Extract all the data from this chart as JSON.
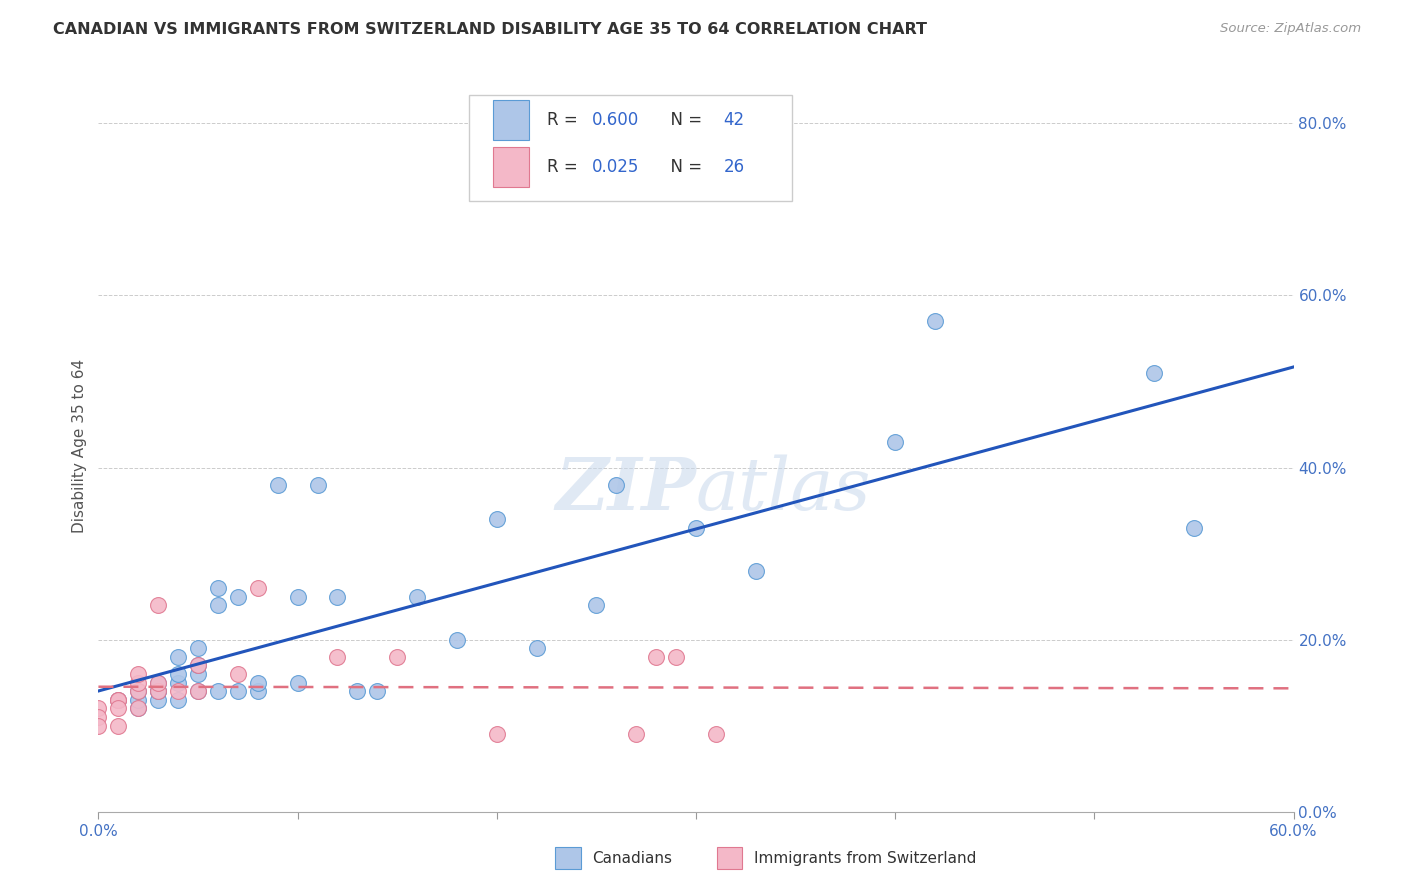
{
  "title": "CANADIAN VS IMMIGRANTS FROM SWITZERLAND DISABILITY AGE 35 TO 64 CORRELATION CHART",
  "source": "Source: ZipAtlas.com",
  "ylabel": "Disability Age 35 to 64",
  "legend_canadians": "Canadians",
  "legend_immigrants": "Immigrants from Switzerland",
  "r_canadian": 0.6,
  "n_canadian": 42,
  "r_immigrant": 0.025,
  "n_immigrant": 26,
  "xlim": [
    0.0,
    0.6
  ],
  "ylim": [
    0.0,
    0.85
  ],
  "ytick_vals": [
    0.0,
    0.2,
    0.4,
    0.6,
    0.8
  ],
  "canadian_color": "#aec6e8",
  "canadian_edge": "#5b9bd5",
  "immigrant_color": "#f4b8c8",
  "immigrant_edge": "#e07890",
  "canadian_line_color": "#2255bb",
  "immigrant_line_color": "#e07080",
  "watermark": "ZIPatlas",
  "canadians_x": [
    0.01,
    0.02,
    0.02,
    0.02,
    0.03,
    0.03,
    0.03,
    0.03,
    0.04,
    0.04,
    0.04,
    0.04,
    0.05,
    0.05,
    0.05,
    0.05,
    0.06,
    0.06,
    0.06,
    0.07,
    0.07,
    0.08,
    0.08,
    0.09,
    0.1,
    0.1,
    0.11,
    0.12,
    0.13,
    0.14,
    0.16,
    0.18,
    0.2,
    0.22,
    0.25,
    0.26,
    0.3,
    0.33,
    0.4,
    0.42,
    0.53,
    0.55
  ],
  "canadians_y": [
    0.13,
    0.12,
    0.13,
    0.14,
    0.14,
    0.15,
    0.13,
    0.14,
    0.15,
    0.16,
    0.18,
    0.13,
    0.16,
    0.17,
    0.19,
    0.14,
    0.24,
    0.26,
    0.14,
    0.25,
    0.14,
    0.14,
    0.15,
    0.38,
    0.25,
    0.15,
    0.38,
    0.25,
    0.14,
    0.14,
    0.25,
    0.2,
    0.34,
    0.19,
    0.24,
    0.38,
    0.33,
    0.28,
    0.43,
    0.57,
    0.51,
    0.33
  ],
  "immigrants_x": [
    0.0,
    0.0,
    0.0,
    0.01,
    0.01,
    0.01,
    0.01,
    0.02,
    0.02,
    0.02,
    0.02,
    0.03,
    0.03,
    0.03,
    0.04,
    0.05,
    0.05,
    0.07,
    0.08,
    0.12,
    0.15,
    0.2,
    0.27,
    0.28,
    0.29,
    0.31
  ],
  "immigrants_y": [
    0.12,
    0.11,
    0.1,
    0.13,
    0.13,
    0.12,
    0.1,
    0.14,
    0.15,
    0.16,
    0.12,
    0.14,
    0.15,
    0.24,
    0.14,
    0.17,
    0.14,
    0.16,
    0.26,
    0.18,
    0.18,
    0.09,
    0.09,
    0.18,
    0.18,
    0.09
  ],
  "background_color": "#ffffff",
  "grid_color": "#cccccc",
  "title_fontsize": 11.5,
  "source_fontsize": 9.5,
  "tick_fontsize": 11,
  "label_fontsize": 11
}
